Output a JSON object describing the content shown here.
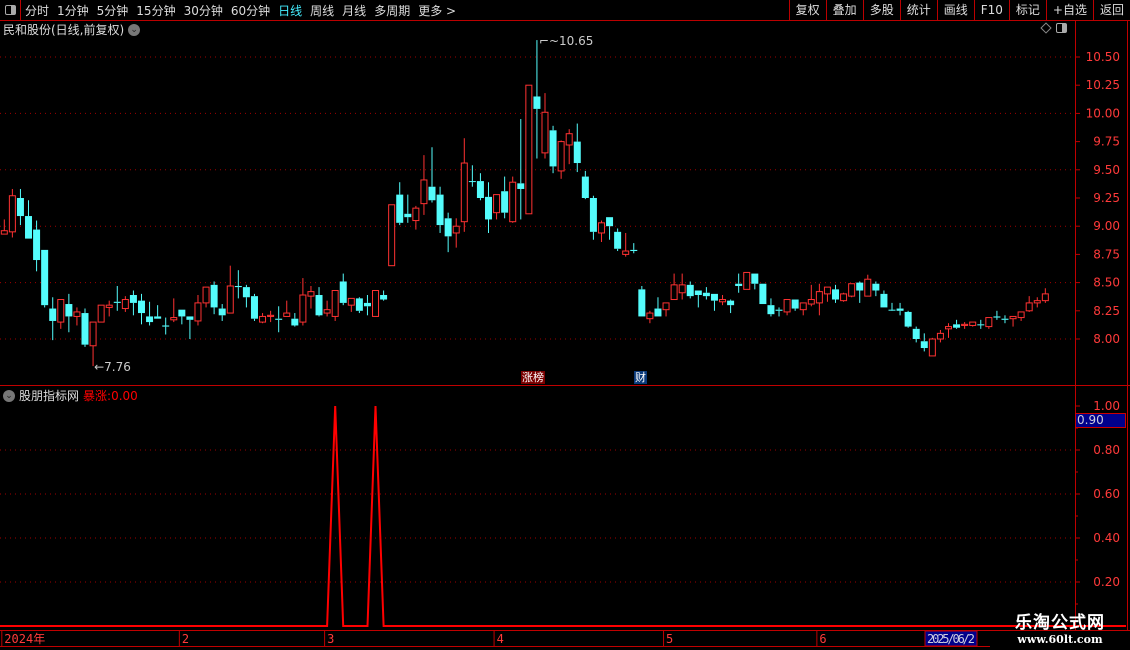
{
  "toolbar": {
    "periods": [
      "分时",
      "1分钟",
      "5分钟",
      "15分钟",
      "30分钟",
      "60分钟",
      "日线",
      "周线",
      "月线",
      "多周期",
      "更多 >"
    ],
    "active_period": "日线",
    "buttons": [
      "复权",
      "叠加",
      "多股",
      "统计",
      "画线",
      "F10",
      "标记",
      "+自选",
      "返回"
    ]
  },
  "main_pane": {
    "title": "民和股份(日线,前复权)"
  },
  "indicator_pane": {
    "name": "股朋指标网",
    "value_label": "暴涨:",
    "value": "0.00",
    "cursor_value": "0.90"
  },
  "tags": {
    "zhangbang": "涨榜",
    "cai": "财"
  },
  "logo": {
    "line1": "乐淘公式网",
    "line2": "www.60lt.com"
  },
  "colors": {
    "up": "#ff3232",
    "down": "#54fcfc",
    "flat": "#ffffff",
    "axis": "#c00000",
    "grid": "#a00000",
    "indicator": "#ff0000"
  },
  "chart_data": [
    {
      "type": "candlestick",
      "ylim": [
        7.7,
        10.7
      ],
      "yticks": [
        "10.50",
        "10.25",
        "10.00",
        "9.75",
        "9.50",
        "9.25",
        "9.00",
        "8.75",
        "8.50",
        "8.25",
        "8.00"
      ],
      "high_label": "10.65",
      "low_label": "7.76",
      "ohlc": [
        [
          8.93,
          9.06,
          8.93,
          8.96
        ],
        [
          8.95,
          9.33,
          8.9,
          9.27
        ],
        [
          9.25,
          9.33,
          9.01,
          9.09
        ],
        [
          9.09,
          9.23,
          8.89,
          8.89
        ],
        [
          8.97,
          9.05,
          8.6,
          8.7
        ],
        [
          8.79,
          8.79,
          8.28,
          8.3
        ],
        [
          8.27,
          8.37,
          7.99,
          8.16
        ],
        [
          8.15,
          8.35,
          8.09,
          8.35
        ],
        [
          8.31,
          8.4,
          8.06,
          8.2
        ],
        [
          8.2,
          8.28,
          8.12,
          8.24
        ],
        [
          8.23,
          8.27,
          7.93,
          7.95
        ],
        [
          7.94,
          8.15,
          7.76,
          8.15
        ],
        [
          8.15,
          8.3,
          8.15,
          8.3
        ],
        [
          8.28,
          8.34,
          8.2,
          8.3
        ],
        [
          8.33,
          8.47,
          8.25,
          8.32
        ],
        [
          8.27,
          8.38,
          8.24,
          8.35
        ],
        [
          8.39,
          8.43,
          8.21,
          8.32
        ],
        [
          8.34,
          8.4,
          8.13,
          8.23
        ],
        [
          8.2,
          8.33,
          8.12,
          8.15
        ],
        [
          8.2,
          8.3,
          8.18,
          8.18
        ],
        [
          8.12,
          8.19,
          8.04,
          8.11
        ],
        [
          8.17,
          8.36,
          8.15,
          8.19
        ],
        [
          8.26,
          8.26,
          8.13,
          8.2
        ],
        [
          8.2,
          8.2,
          8.0,
          8.17
        ],
        [
          8.16,
          8.39,
          8.12,
          8.32
        ],
        [
          8.32,
          8.46,
          8.28,
          8.46
        ],
        [
          8.48,
          8.51,
          8.22,
          8.28
        ],
        [
          8.27,
          8.31,
          8.16,
          8.21
        ],
        [
          8.23,
          8.65,
          8.23,
          8.47
        ],
        [
          8.47,
          8.61,
          8.36,
          8.46
        ],
        [
          8.46,
          8.48,
          8.28,
          8.37
        ],
        [
          8.38,
          8.4,
          8.16,
          8.18
        ],
        [
          8.15,
          8.23,
          8.14,
          8.2
        ],
        [
          8.2,
          8.25,
          8.15,
          8.21
        ],
        [
          8.18,
          8.29,
          8.06,
          8.17
        ],
        [
          8.2,
          8.34,
          8.2,
          8.23
        ],
        [
          8.18,
          8.23,
          8.11,
          8.12
        ],
        [
          8.15,
          8.54,
          8.12,
          8.39
        ],
        [
          8.38,
          8.47,
          8.27,
          8.42
        ],
        [
          8.39,
          8.46,
          8.2,
          8.21
        ],
        [
          8.23,
          8.34,
          8.2,
          8.26
        ],
        [
          8.2,
          8.43,
          8.16,
          8.43
        ],
        [
          8.51,
          8.58,
          8.3,
          8.32
        ],
        [
          8.3,
          8.36,
          8.24,
          8.36
        ],
        [
          8.36,
          8.37,
          8.23,
          8.25
        ],
        [
          8.32,
          8.39,
          8.21,
          8.29
        ],
        [
          8.2,
          8.43,
          8.2,
          8.43
        ],
        [
          8.39,
          8.43,
          8.34,
          8.35
        ],
        [
          8.65,
          9.19,
          8.65,
          9.19
        ],
        [
          9.28,
          9.39,
          9.01,
          9.03
        ],
        [
          9.11,
          9.28,
          9.03,
          9.08
        ],
        [
          9.05,
          9.18,
          8.97,
          9.16
        ],
        [
          9.2,
          9.63,
          9.1,
          9.41
        ],
        [
          9.35,
          9.7,
          9.21,
          9.23
        ],
        [
          9.28,
          9.35,
          8.94,
          9.01
        ],
        [
          9.07,
          9.12,
          8.77,
          8.91
        ],
        [
          8.94,
          9.07,
          8.81,
          9.0
        ],
        [
          9.04,
          9.78,
          8.95,
          9.56
        ],
        [
          9.4,
          9.54,
          9.35,
          9.4
        ],
        [
          9.4,
          9.47,
          9.23,
          9.25
        ],
        [
          9.26,
          9.39,
          8.94,
          9.06
        ],
        [
          9.12,
          9.28,
          9.06,
          9.28
        ],
        [
          9.31,
          9.44,
          9.07,
          9.12
        ],
        [
          9.04,
          9.44,
          9.03,
          9.39
        ],
        [
          9.38,
          9.95,
          9.06,
          9.33
        ],
        [
          9.11,
          10.25,
          9.11,
          10.25
        ],
        [
          10.15,
          10.65,
          9.6,
          10.04
        ],
        [
          9.65,
          10.18,
          9.6,
          10.01
        ],
        [
          9.85,
          9.89,
          9.47,
          9.53
        ],
        [
          9.49,
          9.76,
          9.42,
          9.75
        ],
        [
          9.72,
          9.86,
          9.55,
          9.82
        ],
        [
          9.75,
          9.91,
          9.48,
          9.56
        ],
        [
          9.44,
          9.49,
          9.24,
          9.25
        ],
        [
          9.25,
          9.27,
          8.88,
          8.95
        ],
        [
          8.94,
          9.05,
          8.86,
          9.03
        ],
        [
          9.08,
          9.08,
          8.88,
          9.0
        ],
        [
          8.95,
          8.98,
          8.78,
          8.8
        ],
        [
          8.75,
          8.94,
          8.73,
          8.78
        ],
        [
          8.79,
          8.85,
          8.76,
          8.78
        ],
        [
          8.44,
          8.47,
          8.2,
          8.2
        ],
        [
          8.18,
          8.25,
          8.14,
          8.23
        ],
        [
          8.27,
          8.37,
          8.2,
          8.2
        ],
        [
          8.26,
          8.32,
          8.2,
          8.32
        ],
        [
          8.35,
          8.58,
          8.35,
          8.48
        ],
        [
          8.41,
          8.58,
          8.35,
          8.48
        ],
        [
          8.48,
          8.51,
          8.36,
          8.38
        ],
        [
          8.43,
          8.43,
          8.28,
          8.39
        ],
        [
          8.41,
          8.46,
          8.35,
          8.38
        ],
        [
          8.4,
          8.4,
          8.25,
          8.34
        ],
        [
          8.33,
          8.39,
          8.3,
          8.35
        ],
        [
          8.34,
          8.35,
          8.23,
          8.3
        ],
        [
          8.49,
          8.58,
          8.41,
          8.47
        ],
        [
          8.44,
          8.59,
          8.44,
          8.59
        ],
        [
          8.58,
          8.58,
          8.44,
          8.49
        ],
        [
          8.49,
          8.49,
          8.31,
          8.31
        ],
        [
          8.3,
          8.36,
          8.2,
          8.22
        ],
        [
          8.26,
          8.28,
          8.2,
          8.25
        ],
        [
          8.24,
          8.35,
          8.21,
          8.35
        ],
        [
          8.35,
          8.35,
          8.25,
          8.27
        ],
        [
          8.26,
          8.32,
          8.21,
          8.32
        ],
        [
          8.31,
          8.48,
          8.29,
          8.35
        ],
        [
          8.32,
          8.49,
          8.21,
          8.42
        ],
        [
          8.4,
          8.46,
          8.33,
          8.46
        ],
        [
          8.44,
          8.48,
          8.32,
          8.35
        ],
        [
          8.34,
          8.41,
          8.33,
          8.4
        ],
        [
          8.38,
          8.49,
          8.37,
          8.49
        ],
        [
          8.5,
          8.51,
          8.32,
          8.43
        ],
        [
          8.38,
          8.57,
          8.38,
          8.53
        ],
        [
          8.49,
          8.51,
          8.38,
          8.43
        ],
        [
          8.4,
          8.43,
          8.28,
          8.28
        ],
        [
          8.26,
          8.32,
          8.25,
          8.26
        ],
        [
          8.27,
          8.32,
          8.21,
          8.25
        ],
        [
          8.24,
          8.25,
          8.1,
          8.11
        ],
        [
          8.09,
          8.11,
          7.97,
          8.0
        ],
        [
          7.98,
          8.05,
          7.89,
          7.92
        ],
        [
          7.85,
          8.01,
          7.85,
          8.0
        ],
        [
          8.0,
          8.08,
          7.97,
          8.05
        ],
        [
          8.09,
          8.14,
          8.01,
          8.11
        ],
        [
          8.13,
          8.17,
          8.09,
          8.1
        ],
        [
          8.12,
          8.15,
          8.09,
          8.13
        ],
        [
          8.12,
          8.15,
          8.11,
          8.15
        ],
        [
          8.13,
          8.17,
          8.09,
          8.13
        ],
        [
          8.11,
          8.19,
          8.09,
          8.19
        ],
        [
          8.2,
          8.25,
          8.17,
          8.19
        ],
        [
          8.18,
          8.21,
          8.14,
          8.17
        ],
        [
          8.18,
          8.2,
          8.11,
          8.2
        ],
        [
          8.19,
          8.24,
          8.16,
          8.24
        ],
        [
          8.25,
          8.38,
          8.24,
          8.32
        ],
        [
          8.32,
          8.37,
          8.28,
          8.34
        ],
        [
          8.34,
          8.45,
          8.32,
          8.4
        ]
      ]
    },
    {
      "type": "line",
      "name": "暴涨",
      "ylim": [
        0,
        1.05
      ],
      "yticks": [
        "1.00",
        "0.80",
        "0.60",
        "0.40",
        "0.20"
      ],
      "spikes_at_bar": [
        41,
        46
      ],
      "value_at_spike": 1,
      "value_elsewhere": 0
    },
    {
      "type": "time_axis",
      "labels": [
        "2024年",
        "2",
        "3",
        "4",
        "5",
        "6"
      ],
      "label_bars": [
        0,
        22,
        40,
        61,
        82,
        101
      ],
      "cursor_date": "2025/06/2"
    }
  ]
}
